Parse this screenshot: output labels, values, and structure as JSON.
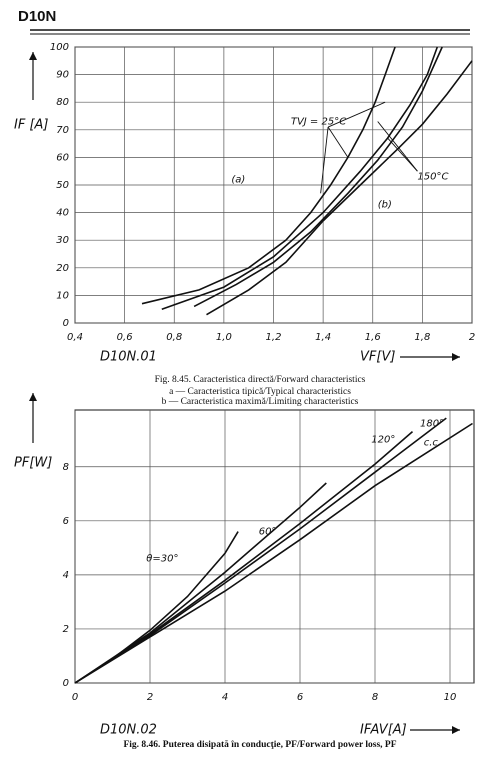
{
  "header": "D10N",
  "chart_data": [
    {
      "type": "line",
      "y_label": "IF [A]",
      "x_label": "VF[V]",
      "code": "D10N.01",
      "caption": [
        "Fig. 8.45. Caracteristica directă/Forward characteristics",
        "a — Caracteristica tipică/Typical characteristics",
        "b — Caracteristica maximă/Limiting characteristics"
      ],
      "annotations": [
        "TVJ = 25°C",
        "150°C",
        "(a)",
        "(b)"
      ],
      "xlim": [
        0.4,
        2
      ],
      "ylim": [
        0,
        100
      ],
      "xticks": [
        {
          "value": 0.4,
          "label": "0,4"
        },
        {
          "value": 0.6,
          "label": "0,6"
        },
        {
          "value": 0.8,
          "label": "0,8"
        },
        {
          "value": 1.0,
          "label": "1,0"
        },
        {
          "value": 1.2,
          "label": "1,2"
        },
        {
          "value": 1.4,
          "label": "1,4"
        },
        {
          "value": 1.6,
          "label": "1,6"
        },
        {
          "value": 1.8,
          "label": "1,8"
        },
        2
      ],
      "yticks": [
        0,
        10,
        20,
        30,
        40,
        50,
        60,
        70,
        80,
        90,
        100
      ],
      "grid": true,
      "series": [
        {
          "color": "#111",
          "x": [
            0.67,
            0.9,
            1.1,
            1.25,
            1.35,
            1.43,
            1.5,
            1.56,
            1.61,
            1.65,
            1.69
          ],
          "values": [
            7,
            12,
            20,
            30,
            40,
            50,
            60,
            70,
            80,
            90,
            100
          ]
        },
        {
          "color": "#111",
          "x": [
            0.75,
            1.0,
            1.2,
            1.4,
            1.55,
            1.66,
            1.75,
            1.82,
            1.86
          ],
          "values": [
            5,
            13,
            24,
            40,
            55,
            67,
            79,
            90,
            100
          ]
        },
        {
          "color": "#111",
          "x": [
            0.88,
            1.05,
            1.2,
            1.35,
            1.5,
            1.62,
            1.72,
            1.8,
            1.88
          ],
          "values": [
            6,
            14,
            22,
            33,
            47,
            59,
            71,
            84,
            100
          ]
        },
        {
          "color": "#111",
          "x": [
            0.93,
            1.1,
            1.25,
            1.4,
            1.55,
            1.7,
            1.8,
            1.9,
            2.0
          ],
          "values": [
            3,
            12,
            22,
            37,
            50,
            63,
            72,
            83,
            95
          ]
        }
      ]
    },
    {
      "type": "line",
      "y_label": "PF[W]",
      "x_label": "IFAV[A]",
      "code": "D10N.02",
      "caption": "Fig. 8.46. Puterea disipată în conducţie, PF/Forward power loss, PF",
      "annotations": [
        "θ=30°",
        "60°",
        "120°",
        "180°",
        "c.c."
      ],
      "xlim": [
        0,
        10.64
      ],
      "ylim": [
        0,
        10.1
      ],
      "xticks": [
        0,
        2,
        4,
        6,
        8,
        10
      ],
      "yticks": [
        0,
        2,
        4,
        6,
        8
      ],
      "grid": true,
      "series": [
        {
          "color": "#111",
          "x": [
            0,
            1,
            2,
            3,
            4,
            4.35
          ],
          "values": [
            0,
            0.9,
            1.95,
            3.2,
            4.8,
            5.6
          ]
        },
        {
          "color": "#111",
          "x": [
            0,
            2,
            4,
            6,
            6.7
          ],
          "values": [
            0,
            1.85,
            4.1,
            6.5,
            7.4
          ]
        },
        {
          "color": "#111",
          "x": [
            0,
            2,
            4,
            6,
            8,
            9
          ],
          "values": [
            0,
            1.8,
            3.8,
            5.9,
            8.1,
            9.3
          ]
        },
        {
          "color": "#111",
          "x": [
            0,
            2,
            4,
            6,
            8,
            9.9
          ],
          "values": [
            0,
            1.75,
            3.7,
            5.7,
            7.8,
            9.8
          ]
        },
        {
          "color": "#111",
          "x": [
            0,
            2,
            4,
            6,
            8,
            10.6
          ],
          "values": [
            0,
            1.7,
            3.4,
            5.3,
            7.3,
            9.6
          ]
        }
      ]
    }
  ]
}
